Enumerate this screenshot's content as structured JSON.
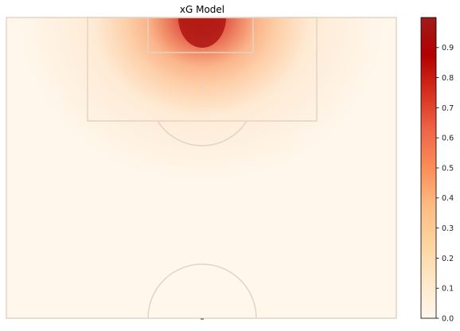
{
  "chart_data": {
    "type": "heatmap",
    "title": "xG Model",
    "xlabel": "",
    "ylabel": "",
    "colormap": "OrRd",
    "value_range": [
      0,
      1
    ],
    "colorbar": {
      "ticks": [
        0.0,
        0.1,
        0.2,
        0.3,
        0.4,
        0.5,
        0.6,
        0.7,
        0.8,
        0.9
      ],
      "tick_labels": [
        "0.0",
        "0.1",
        "0.2",
        "0.3",
        "0.4",
        "0.5",
        "0.6",
        "0.7",
        "0.8",
        "0.9"
      ],
      "placement": "right"
    },
    "hotspot": "goal-mouth at top center of pitch, values near 1.0 decaying to ~0.02 toward halfway line",
    "pitch_lines_color": "#e3d3c3",
    "colors": {
      "low": "#fff7ec",
      "mid": "#fdbb84",
      "high": "#b31b17"
    }
  }
}
